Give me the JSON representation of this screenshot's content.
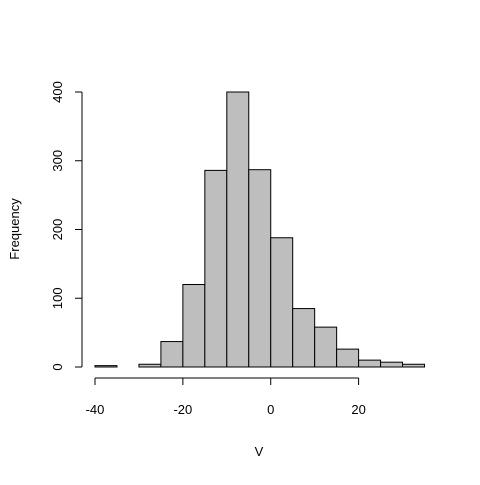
{
  "chart_data": {
    "type": "bar",
    "title": "",
    "xlabel": "V",
    "ylabel": "Frequency",
    "bin_edges": [
      -40,
      -35,
      -30,
      -25,
      -20,
      -15,
      -10,
      -5,
      0,
      5,
      10,
      15,
      20,
      25,
      30,
      35
    ],
    "values": [
      2,
      0,
      4,
      37,
      120,
      286,
      400,
      287,
      188,
      85,
      58,
      26,
      10,
      7,
      4
    ],
    "xlim": [
      -40,
      35
    ],
    "ylim": [
      0,
      400
    ],
    "xticks": [
      -40,
      -20,
      0,
      20
    ],
    "yticks": [
      0,
      100,
      200,
      300,
      400
    ],
    "bar_color": "#bebebe",
    "edge_color": "#000000",
    "grid": false
  }
}
